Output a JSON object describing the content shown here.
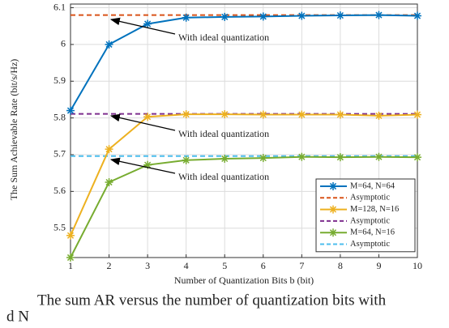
{
  "chart_data": {
    "type": "line",
    "y_label": "The Sum Achievable Rate (bit/s/Hz)",
    "x_label": "Number of Quantization Bits b (bit)",
    "x": [
      1,
      2,
      3,
      4,
      5,
      6,
      7,
      8,
      9,
      10
    ],
    "xlim": [
      1,
      10
    ],
    "xticks": [
      1,
      2,
      3,
      4,
      5,
      6,
      7,
      8,
      9,
      10
    ],
    "ylim": [
      5.42,
      6.11
    ],
    "yticks": [
      5.5,
      5.6,
      5.7,
      5.8,
      5.9,
      {
        "value": 6,
        "label": "6"
      },
      6.1
    ],
    "grid": true,
    "legend": "lower right",
    "series": [
      {
        "name": "M=64, N=64",
        "color": "#0072bd",
        "values": [
          5.82,
          6.0,
          6.056,
          6.073,
          6.075,
          6.076,
          6.078,
          6.079,
          6.08,
          6.078
        ]
      },
      {
        "name": "M=128, N=16",
        "color": "#edb120",
        "values": [
          5.48,
          5.715,
          5.803,
          5.81,
          5.81,
          5.809,
          5.809,
          5.809,
          5.806,
          5.809
        ]
      },
      {
        "name": "M=64, N=16",
        "color": "#77ac30",
        "values": [
          5.42,
          5.625,
          5.672,
          5.685,
          5.689,
          5.691,
          5.694,
          5.693,
          5.694,
          5.693
        ]
      }
    ],
    "asymptotes": [
      {
        "name": "Asymptotic",
        "color": "#d95319",
        "value": 6.08
      },
      {
        "name": "Asymptotic",
        "color": "#7e2f8e",
        "value": 5.811
      },
      {
        "name": "Asymptotic",
        "color": "#4dbeee",
        "value": 5.696
      }
    ],
    "annotations": [
      "With ideal quantization",
      "With ideal quantization",
      "With ideal quantization"
    ],
    "caption_lines": [
      "The sum AR versus the number of quantization bits with",
      "d N"
    ]
  }
}
